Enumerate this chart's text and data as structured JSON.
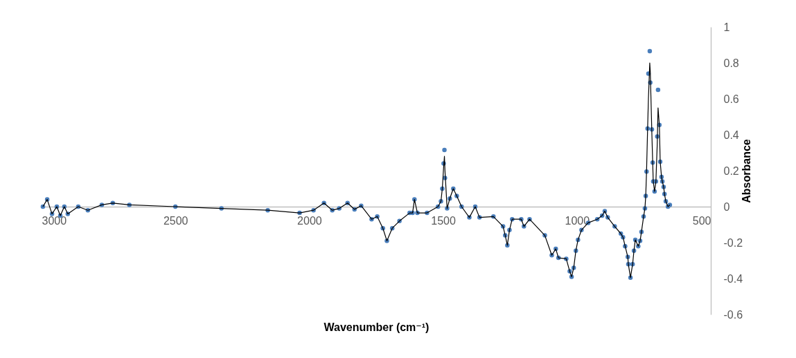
{
  "chart_data": {
    "type": "scatter",
    "xlabel": "Wavenumber (cm⁻¹)",
    "ylabel": "Absorbance",
    "xlim": [
      3000,
      500
    ],
    "xticks": [
      3000,
      2500,
      2000,
      1500,
      1000,
      500
    ],
    "ylim": [
      -0.6,
      1
    ],
    "yticks": [
      -0.6,
      -0.4,
      -0.2,
      0,
      0.2,
      0.4,
      0.6,
      0.8,
      1
    ],
    "series": [
      {
        "type": "scatter",
        "marker": "circle",
        "color": "#4a7ebb",
        "x": [
          2995,
          2979,
          2961,
          2943,
          2930,
          2915,
          2902,
          2863,
          2827,
          2775,
          2734,
          2672,
          2500,
          2328,
          2155,
          2036,
          1984,
          1945,
          1914,
          1888,
          1857,
          1831,
          1806,
          1767,
          1746,
          1725,
          1710,
          1690,
          1663,
          1625,
          1614,
          1607,
          1596,
          1560,
          1519,
          1508,
          1503,
          1498,
          1495,
          1493,
          1485,
          1475,
          1462,
          1449,
          1431,
          1402,
          1380,
          1364,
          1312,
          1276,
          1268,
          1260,
          1252,
          1242,
          1208,
          1198,
          1177,
          1120,
          1094,
          1079,
          1069,
          1040,
          1027,
          1020,
          1012,
          1004,
          996,
          983,
          958,
          924,
          906,
          896,
          885,
          859,
          836,
          828,
          820,
          810,
          808,
          800,
          792,
          787,
          782,
          771,
          764,
          759,
          751,
          746,
          743,
          740,
          736,
          733,
          728,
          726,
          720,
          717,
          715,
          710,
          705,
          700,
          697,
          692,
          689,
          684,
          681,
          676,
          673,
          668,
          660,
          653
        ],
        "values": [
          0,
          0.04,
          -0.04,
          0,
          -0.05,
          0,
          -0.04,
          0,
          -0.02,
          0.01,
          0.02,
          0.01,
          0,
          -0.01,
          -0.02,
          -0.035,
          -0.02,
          0.02,
          -0.02,
          -0.01,
          0.02,
          -0.015,
          0.005,
          -0.07,
          -0.055,
          -0.12,
          -0.19,
          -0.12,
          -0.08,
          -0.035,
          -0.035,
          0.04,
          -0.035,
          -0.035,
          0,
          0.03,
          0.1,
          0.24,
          0.315,
          0.16,
          -0.01,
          0.045,
          0.1,
          0.06,
          0,
          -0.06,
          0,
          -0.06,
          -0.055,
          -0.11,
          -0.16,
          -0.215,
          -0.13,
          -0.07,
          -0.07,
          -0.11,
          -0.07,
          -0.16,
          -0.27,
          -0.235,
          -0.285,
          -0.29,
          -0.36,
          -0.39,
          -0.34,
          -0.245,
          -0.185,
          -0.13,
          -0.09,
          -0.07,
          -0.05,
          -0.025,
          -0.06,
          -0.11,
          -0.15,
          -0.17,
          -0.22,
          -0.28,
          -0.32,
          -0.395,
          -0.32,
          -0.245,
          -0.185,
          -0.22,
          -0.19,
          -0.14,
          -0.055,
          -0.01,
          0.06,
          0.195,
          0.435,
          0.74,
          0.865,
          0.69,
          0.43,
          0.245,
          0.14,
          0.085,
          0.14,
          0.39,
          0.65,
          0.455,
          0.25,
          0.165,
          0.14,
          0.11,
          0.07,
          0.03,
          0,
          0.01
        ]
      },
      {
        "type": "line",
        "color": "#000000",
        "x": [
          2995,
          2979,
          2961,
          2943,
          2930,
          2915,
          2902,
          2863,
          2827,
          2775,
          2734,
          2672,
          2500,
          2328,
          2155,
          2036,
          1984,
          1945,
          1914,
          1888,
          1857,
          1831,
          1806,
          1767,
          1746,
          1725,
          1710,
          1690,
          1663,
          1625,
          1614,
          1607,
          1596,
          1560,
          1519,
          1508,
          1503,
          1498,
          1495,
          1493,
          1485,
          1475,
          1462,
          1449,
          1431,
          1402,
          1380,
          1364,
          1312,
          1276,
          1268,
          1260,
          1252,
          1242,
          1208,
          1198,
          1177,
          1120,
          1094,
          1079,
          1069,
          1040,
          1027,
          1020,
          1012,
          1004,
          996,
          983,
          958,
          924,
          906,
          896,
          885,
          859,
          836,
          828,
          820,
          810,
          808,
          800,
          792,
          787,
          782,
          771,
          764,
          759,
          751,
          746,
          743,
          740,
          736,
          733,
          728,
          726,
          720,
          717,
          715,
          710,
          705,
          700,
          697,
          692,
          689,
          684,
          681,
          676,
          673,
          668,
          660,
          653
        ],
        "values": [
          0,
          0.04,
          -0.04,
          0,
          -0.05,
          0,
          -0.04,
          0,
          -0.02,
          0.01,
          0.02,
          0.01,
          0,
          -0.01,
          -0.02,
          -0.035,
          -0.02,
          0.02,
          -0.02,
          -0.01,
          0.02,
          -0.015,
          0.005,
          -0.07,
          -0.055,
          -0.12,
          -0.19,
          -0.12,
          -0.08,
          -0.035,
          -0.035,
          0.04,
          -0.035,
          -0.035,
          0,
          0.03,
          0.1,
          0.22,
          0.28,
          0.2,
          -0.01,
          0.045,
          0.1,
          0.06,
          0,
          -0.06,
          0,
          -0.06,
          -0.055,
          -0.11,
          -0.16,
          -0.215,
          -0.13,
          -0.07,
          -0.07,
          -0.11,
          -0.07,
          -0.16,
          -0.27,
          -0.235,
          -0.285,
          -0.29,
          -0.36,
          -0.39,
          -0.34,
          -0.245,
          -0.185,
          -0.13,
          -0.09,
          -0.07,
          -0.05,
          -0.025,
          -0.06,
          -0.11,
          -0.15,
          -0.17,
          -0.22,
          -0.28,
          -0.32,
          -0.395,
          -0.32,
          -0.245,
          -0.185,
          -0.22,
          -0.19,
          -0.14,
          -0.055,
          -0.01,
          0.06,
          0.195,
          0.435,
          0.6,
          0.8,
          0.75,
          0.4,
          0.245,
          0.14,
          0.085,
          0.14,
          0.35,
          0.55,
          0.45,
          0.25,
          0.165,
          0.14,
          0.11,
          0.07,
          0.03,
          0,
          0.01
        ]
      }
    ]
  }
}
